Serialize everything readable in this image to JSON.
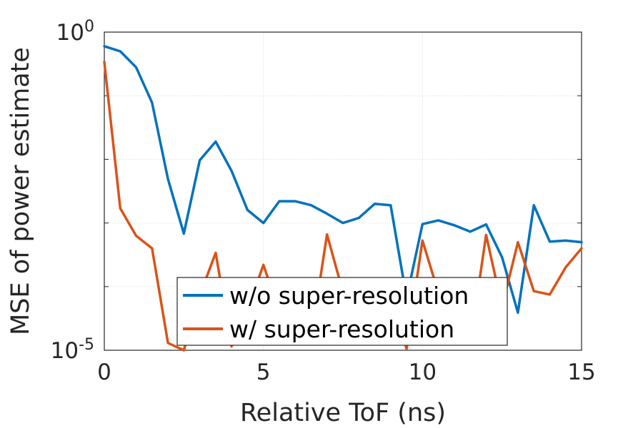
{
  "chart_data": {
    "type": "line",
    "xlabel": "Relative ToF (ns)",
    "ylabel": "MSE of power estimate",
    "xlim": [
      0,
      15
    ],
    "ylim": [
      1e-05,
      1
    ],
    "yscale": "log",
    "grid": true,
    "legend_position": "bottom-center",
    "x_ticks": [
      "0",
      "5",
      "10",
      "15"
    ],
    "x_tick_values": [
      0,
      5,
      10,
      15
    ],
    "y_ticks": [
      {
        "base": "10",
        "exp": "-5",
        "value": 1e-05
      },
      {
        "base": "10",
        "exp": "0",
        "value": 1
      }
    ],
    "y_minor_ticks": [
      0.0001,
      0.001,
      0.01,
      0.1
    ],
    "x": [
      0,
      0.5,
      1,
      1.5,
      2,
      2.5,
      3,
      3.5,
      4,
      4.5,
      5,
      5.5,
      6,
      6.5,
      7,
      7.5,
      8,
      8.5,
      9,
      9.5,
      10,
      10.5,
      11,
      11.5,
      12,
      12.5,
      13,
      13.5,
      14,
      14.5,
      15
    ],
    "series": [
      {
        "name": "w/o super-resolution",
        "color": "#0072BD",
        "values": [
          0.6,
          0.5,
          0.28,
          0.078,
          0.0049,
          0.00068,
          0.0097,
          0.019,
          0.0066,
          0.0016,
          0.001,
          0.0022,
          0.0022,
          0.0019,
          0.0014,
          0.001,
          0.0012,
          0.002,
          0.0019,
          6.6e-05,
          0.00096,
          0.0011,
          0.00092,
          0.00073,
          0.00095,
          0.00029,
          3.9e-05,
          0.0019,
          0.00051,
          0.00053,
          0.0005
        ]
      },
      {
        "name": "w/ super-resolution",
        "color": "#D95319",
        "values": [
          0.34,
          0.0017,
          0.00063,
          0.0004,
          1.3e-05,
          1e-05,
          7.3e-05,
          0.00034,
          1.15e-05,
          4.3e-05,
          0.00022,
          4e-05,
          8.7e-05,
          1.55e-05,
          0.00066,
          8.2e-05,
          1.9e-05,
          5.3e-05,
          8.5e-05,
          1.05e-05,
          0.00053,
          8e-05,
          6.2e-05,
          1.25e-05,
          0.00065,
          4.8e-05,
          0.0005,
          8.5e-05,
          7.5e-05,
          0.0002,
          0.0004
        ]
      }
    ]
  }
}
